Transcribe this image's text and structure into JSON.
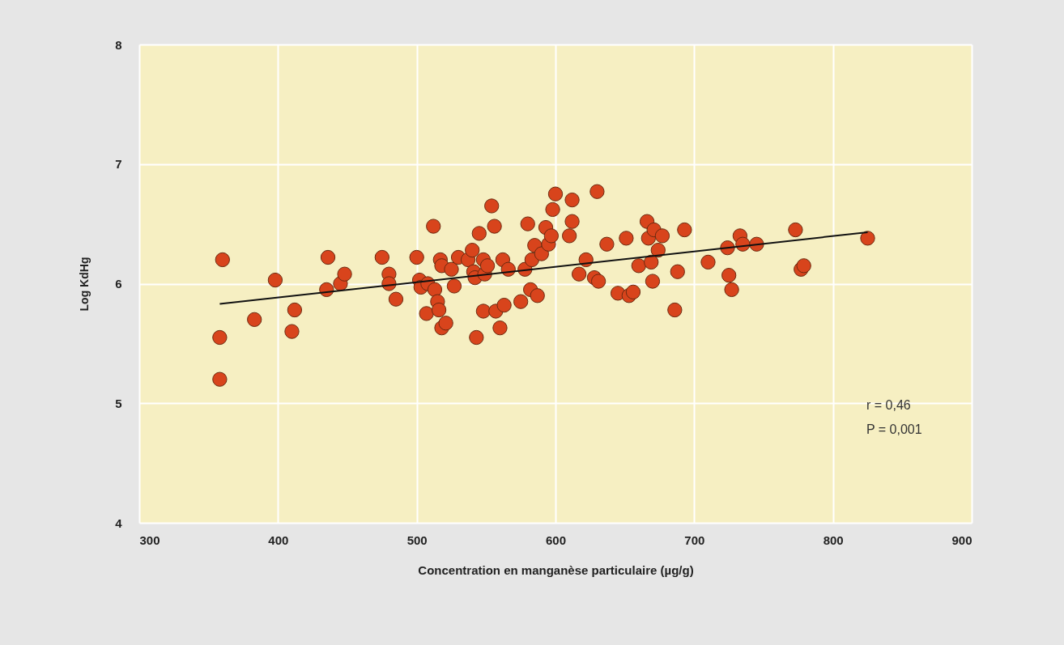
{
  "chart_data": {
    "type": "scatter",
    "xlabel": "Concentration en manganèse particulaire (µg/g)",
    "ylabel": "Log KdHg",
    "xlim": [
      300,
      900
    ],
    "ylim": [
      4,
      8
    ],
    "xticks": [
      300,
      400,
      500,
      600,
      700,
      800,
      900
    ],
    "yticks": [
      4,
      5,
      6,
      7,
      8
    ],
    "grid": true,
    "series": [
      {
        "color": "#d8441c",
        "marker": "circle",
        "x": [
          358,
          358,
          360,
          383,
          398,
          410,
          412,
          435,
          436,
          445,
          448,
          475,
          480,
          480,
          485,
          500,
          502,
          503,
          507,
          508,
          512,
          513,
          515,
          516,
          517,
          518,
          518,
          521,
          525,
          527,
          530,
          537,
          540,
          541,
          542,
          543,
          545,
          548,
          548,
          549,
          551,
          554,
          556,
          557,
          560,
          562,
          563,
          566,
          575,
          578,
          580,
          582,
          583,
          585,
          587,
          590,
          593,
          595,
          597,
          598,
          600,
          610,
          612,
          612,
          617,
          622,
          628,
          630,
          631,
          637,
          645,
          651,
          653,
          656,
          660,
          666,
          667,
          669,
          670,
          671,
          674,
          677,
          686,
          688,
          693,
          710,
          724,
          725,
          727,
          733,
          735,
          745,
          773,
          777,
          779,
          825
        ],
        "values": [
          5.55,
          5.2,
          6.2,
          5.7,
          6.03,
          5.6,
          5.78,
          5.95,
          6.22,
          6.0,
          6.08,
          6.22,
          6.08,
          6.0,
          5.87,
          6.22,
          6.03,
          5.97,
          5.75,
          6.0,
          6.48,
          5.95,
          5.85,
          5.78,
          6.2,
          6.15,
          5.63,
          5.67,
          6.12,
          5.98,
          6.22,
          6.2,
          6.28,
          6.1,
          6.05,
          5.55,
          6.42,
          6.2,
          5.77,
          6.08,
          6.15,
          6.65,
          6.48,
          5.77,
          5.63,
          6.2,
          5.82,
          6.12,
          5.85,
          6.12,
          6.5,
          5.95,
          6.2,
          6.32,
          5.9,
          6.25,
          6.47,
          6.33,
          6.4,
          6.62,
          6.75,
          6.4,
          6.52,
          6.7,
          6.08,
          6.2,
          6.05,
          6.77,
          6.02,
          6.33,
          5.92,
          6.38,
          5.9,
          5.93,
          6.15,
          6.52,
          6.38,
          6.18,
          6.02,
          6.45,
          6.28,
          6.4,
          5.78,
          6.1,
          6.45,
          6.18,
          6.3,
          6.07,
          5.95,
          6.4,
          6.33,
          6.33,
          6.45,
          6.12,
          6.15,
          6.38
        ]
      },
      {
        "type": "line",
        "color": "#111111",
        "marker": "none",
        "line_style": "solid",
        "x": [
          358,
          825
        ],
        "values": [
          5.83,
          6.43
        ]
      }
    ],
    "annotations": [
      "r = 0,46",
      "P = 0,001"
    ]
  }
}
